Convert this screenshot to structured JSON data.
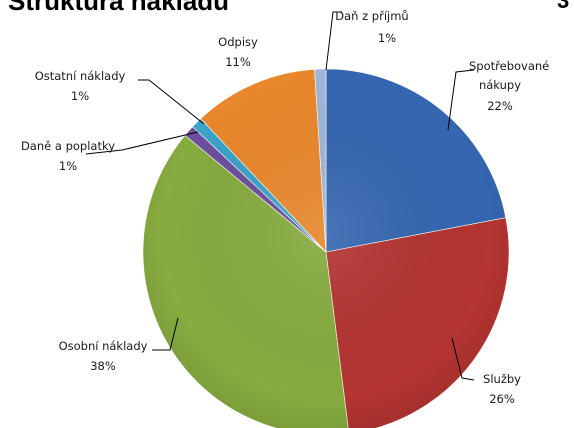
{
  "chart_data": {
    "type": "pie",
    "title": "Struktura nákladů",
    "slices": [
      {
        "name": "Spotřebované nákupy",
        "value": 22,
        "label": "22%",
        "color": "#3566b0"
      },
      {
        "name": "Služby",
        "value": 26,
        "label": "26%",
        "color": "#b33431"
      },
      {
        "name": "Osobní náklady",
        "value": 38,
        "label": "38%",
        "color": "#86ab3f"
      },
      {
        "name": "Daně a poplatky",
        "value": 1,
        "label": "1%",
        "color": "#6b4f9c"
      },
      {
        "name": "Ostatní náklady",
        "value": 1,
        "label": "1%",
        "color": "#3ba3c7"
      },
      {
        "name": "Odpisy",
        "value": 11,
        "label": "11%",
        "color": "#e8872b"
      },
      {
        "name": "Daň z příjmů",
        "value": 1,
        "label": "1%",
        "color": "#9fb6d8"
      }
    ]
  },
  "edge_text": "3"
}
